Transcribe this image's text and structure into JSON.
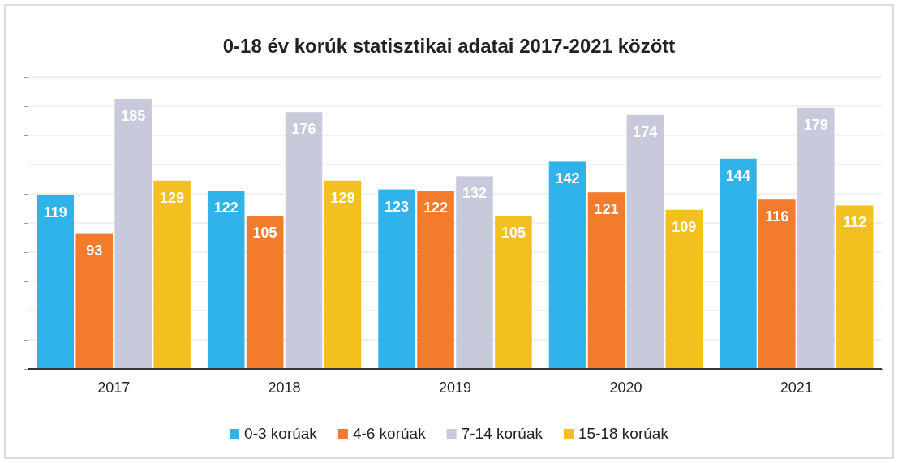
{
  "chart_data": {
    "type": "bar",
    "title": "0-18 év korúk statisztikai adatai 2017-2021 között",
    "categories": [
      "2017",
      "2018",
      "2019",
      "2020",
      "2021"
    ],
    "series": [
      {
        "name": "0-3 korúak",
        "color": "#2fb3e8",
        "values": [
          119,
          122,
          123,
          142,
          144
        ]
      },
      {
        "name": "4-6 korúak",
        "color": "#f27b2c",
        "values": [
          93,
          105,
          122,
          121,
          116
        ]
      },
      {
        "name": "7-14 korúak",
        "color": "#c9c9dc",
        "values": [
          185,
          176,
          132,
          174,
          179
        ]
      },
      {
        "name": "15-18 korúak",
        "color": "#f3c11f",
        "values": [
          129,
          129,
          105,
          109,
          112
        ]
      }
    ],
    "ylim": [
      0,
      200
    ],
    "yticks": [
      {
        "value": 0,
        "label": null
      },
      {
        "value": 20,
        "label": null
      },
      {
        "value": 40,
        "label": null
      },
      {
        "value": 60,
        "label": null
      },
      {
        "value": 80,
        "label": null
      },
      {
        "value": 100,
        "label": null
      },
      {
        "value": 120,
        "label": null
      },
      {
        "value": 140,
        "label": null
      },
      {
        "value": 160,
        "label": null
      },
      {
        "value": 180,
        "label": null
      },
      {
        "value": 200,
        "label": null
      }
    ],
    "tick_labels": "x",
    "grid": "y",
    "legend": "bottom",
    "data_labels": true
  }
}
